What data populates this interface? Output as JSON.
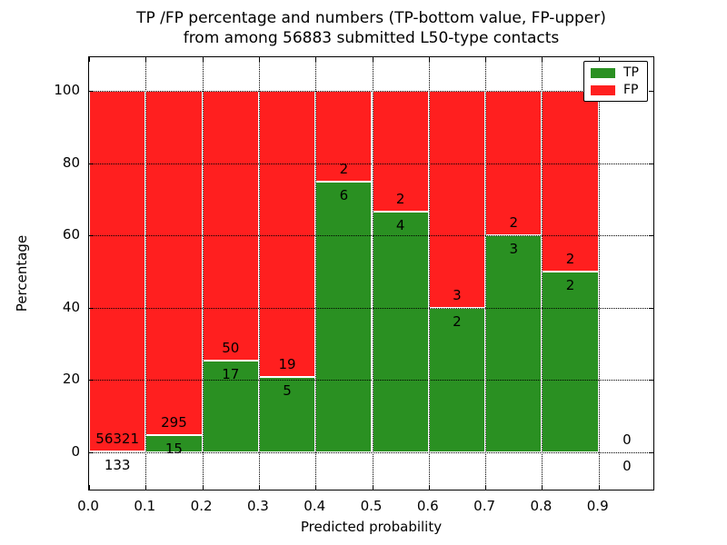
{
  "title": {
    "line1": "TP /FP percentage and numbers (TP-bottom value, FP-upper)",
    "line2": "from among 56883 submitted L50-type contacts"
  },
  "axes": {
    "xlabel": "Predicted probability",
    "ylabel": "Percentage"
  },
  "legend": {
    "items": [
      {
        "label": "TP",
        "color": "#2A9022"
      },
      {
        "label": "FP",
        "color": "#FF1F1F"
      }
    ]
  },
  "chart_data": {
    "type": "bar",
    "stacked": true,
    "unit": "percent",
    "title": "TP /FP percentage and numbers (TP-bottom value, FP-upper) from among 56883 submitted L50-type contacts",
    "xlabel": "Predicted probability",
    "ylabel": "Percentage",
    "xlim": [
      0.0,
      1.0
    ],
    "ylim": [
      -10.8,
      109.3
    ],
    "grid": true,
    "legend_position": "upper right",
    "total_contacts": 56883,
    "x_ticks": [
      {
        "value": 0.0,
        "label": "0.0"
      },
      {
        "value": 0.1,
        "label": "0.1"
      },
      {
        "value": 0.2,
        "label": "0.2"
      },
      {
        "value": 0.3,
        "label": "0.3"
      },
      {
        "value": 0.4,
        "label": "0.4"
      },
      {
        "value": 0.5,
        "label": "0.5"
      },
      {
        "value": 0.6,
        "label": "0.6"
      },
      {
        "value": 0.7,
        "label": "0.7"
      },
      {
        "value": 0.8,
        "label": "0.8"
      },
      {
        "value": 0.9,
        "label": "0.9"
      }
    ],
    "y_ticks": [
      {
        "value": 0,
        "label": "0"
      },
      {
        "value": 20,
        "label": "20"
      },
      {
        "value": 40,
        "label": "40"
      },
      {
        "value": 60,
        "label": "60"
      },
      {
        "value": 80,
        "label": "80"
      },
      {
        "value": 100,
        "label": "100"
      }
    ],
    "series": [
      {
        "name": "TP",
        "color": "#2A9022",
        "values_pct": [
          0.24,
          4.84,
          25.37,
          20.83,
          75.0,
          66.67,
          40.0,
          60.0,
          50.0,
          0
        ]
      },
      {
        "name": "FP",
        "color": "#FF1F1F",
        "values_pct": [
          99.76,
          95.16,
          74.63,
          79.17,
          25.0,
          33.33,
          60.0,
          40.0,
          50.0,
          0
        ]
      }
    ],
    "bins": [
      {
        "range": [
          0.0,
          0.1
        ],
        "tp_count": "133",
        "fp_count": "56321",
        "tp_pct": 0.24
      },
      {
        "range": [
          0.1,
          0.2
        ],
        "tp_count": "15",
        "fp_count": "295",
        "tp_pct": 4.84
      },
      {
        "range": [
          0.2,
          0.3
        ],
        "tp_count": "17",
        "fp_count": "50",
        "tp_pct": 25.37
      },
      {
        "range": [
          0.3,
          0.4
        ],
        "tp_count": "5",
        "fp_count": "19",
        "tp_pct": 20.83
      },
      {
        "range": [
          0.4,
          0.5
        ],
        "tp_count": "6",
        "fp_count": "2",
        "tp_pct": 75.0
      },
      {
        "range": [
          0.5,
          0.6
        ],
        "tp_count": "4",
        "fp_count": "2",
        "tp_pct": 66.67
      },
      {
        "range": [
          0.6,
          0.7
        ],
        "tp_count": "2",
        "fp_count": "3",
        "tp_pct": 40.0
      },
      {
        "range": [
          0.7,
          0.8
        ],
        "tp_count": "3",
        "fp_count": "2",
        "tp_pct": 60.0
      },
      {
        "range": [
          0.8,
          0.9
        ],
        "tp_count": "2",
        "fp_count": "2",
        "tp_pct": 50.0
      },
      {
        "range": [
          0.9,
          1.0
        ],
        "tp_count": "0",
        "fp_count": "0",
        "tp_pct": 0,
        "empty": true
      }
    ]
  }
}
